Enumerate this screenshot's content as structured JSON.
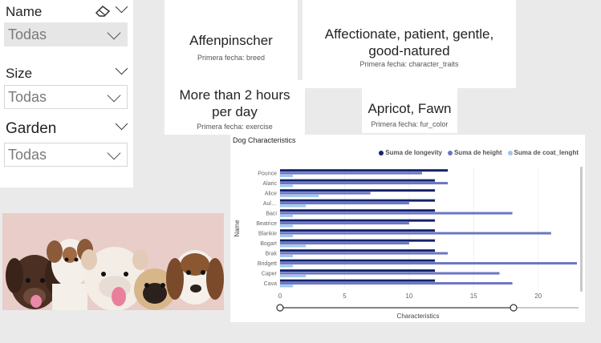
{
  "slicers": {
    "name": {
      "title": "Name",
      "value": "Todas"
    },
    "size": {
      "title": "Size",
      "value": "Todas"
    },
    "garden": {
      "title": "Garden",
      "value": "Todas"
    }
  },
  "cards": [
    {
      "value": "Affenpinscher",
      "label": "Primera fecha: breed"
    },
    {
      "value": "Affectionate, patient, gentle, good-natured",
      "label": "Primera fecha: character_traits"
    },
    {
      "value": "More than 2 hours per day",
      "label": "Primera fecha: exercise"
    },
    {
      "value": "Apricot, Fawn",
      "label": "Primera fecha: fur_color"
    }
  ],
  "colors": {
    "longevity": "#15236b",
    "height": "#6b76c4",
    "coat": "#9cc6ef"
  },
  "chart_data": {
    "type": "bar",
    "orientation": "horizontal",
    "title": "Dog Characteristics",
    "xlabel": "Characteristics",
    "ylabel": "Name",
    "xlim": [
      0,
      23
    ],
    "xticks": [
      0,
      5,
      10,
      15,
      20
    ],
    "categories": [
      "Pounce",
      "Alaric",
      "Alice",
      "Aul…",
      "Baci",
      "Beatrice",
      "Blankie",
      "Bogart",
      "Brak",
      "Bridgett",
      "Caper",
      "Cava"
    ],
    "series": [
      {
        "name": "Suma de longevity",
        "values": [
          13,
          12,
          12,
          12,
          12,
          12,
          12,
          12,
          12,
          12,
          12,
          12
        ]
      },
      {
        "name": "Suma de height",
        "values": [
          11,
          13,
          7,
          10,
          18,
          10,
          21,
          10,
          13,
          23,
          17,
          18
        ]
      },
      {
        "name": "Suma de coat_lenght",
        "values": [
          1,
          1,
          3,
          2,
          1,
          1,
          1,
          2,
          1,
          1,
          2,
          1
        ]
      }
    ]
  }
}
